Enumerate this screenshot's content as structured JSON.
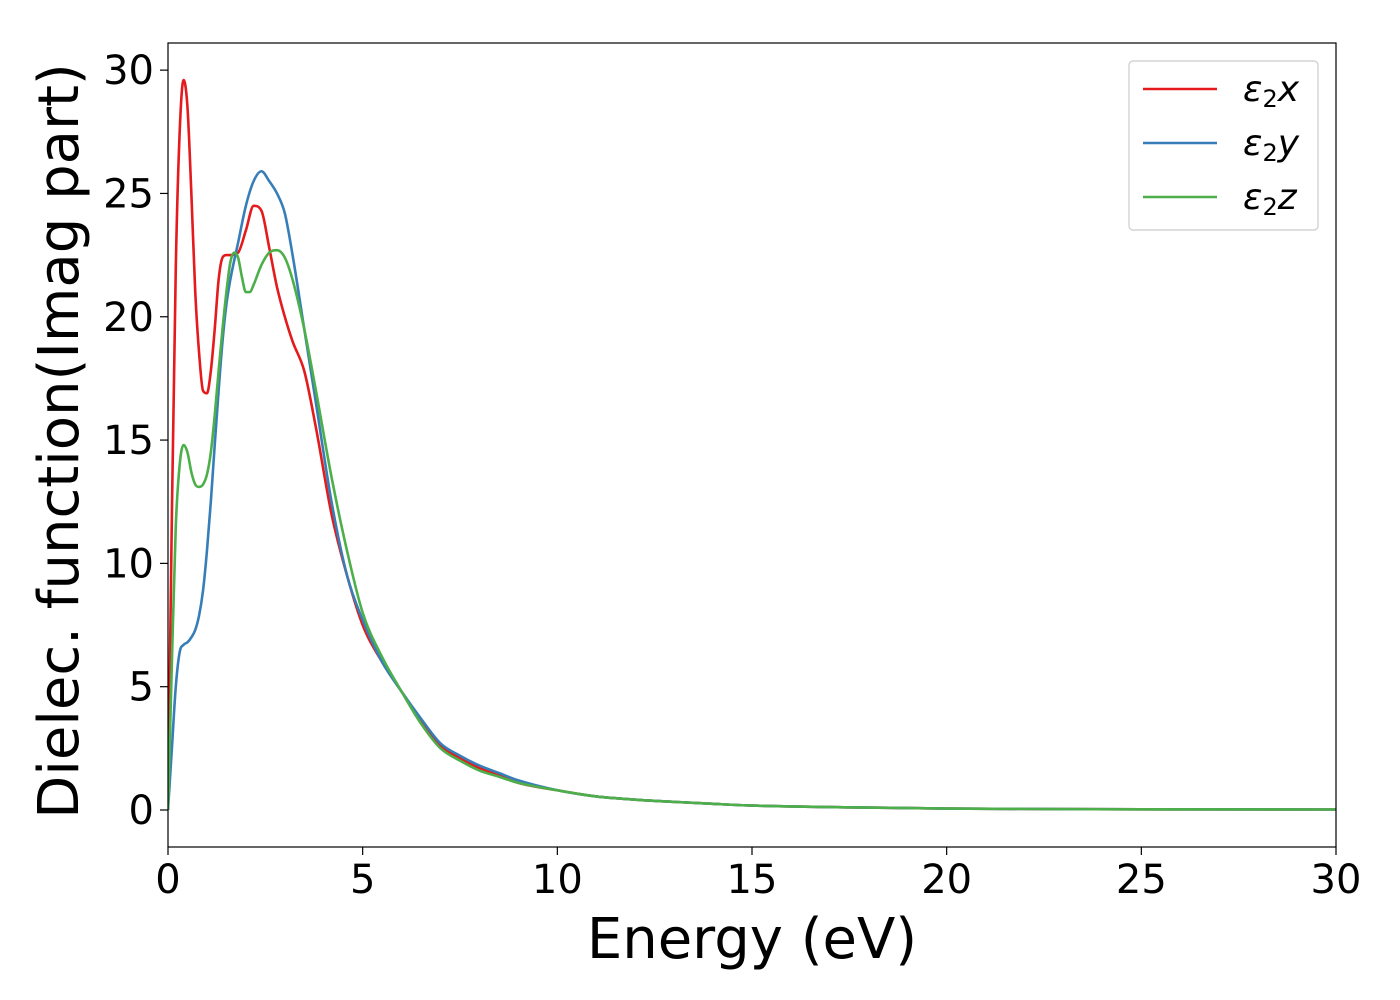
{
  "chart_data": {
    "type": "line",
    "xlabel": "Energy (eV)",
    "ylabel": "Dielec. function(Imag part)",
    "xlim": [
      0,
      30
    ],
    "ylim": [
      -1.5,
      31.1
    ],
    "xticks": [
      0,
      5,
      10,
      15,
      20,
      25,
      30
    ],
    "yticks": [
      0,
      5,
      10,
      15,
      20,
      25,
      30
    ],
    "grid": false,
    "legend_position": "top-right",
    "series": [
      {
        "name": "ε₂x",
        "legend_base": "ε",
        "legend_sub": "2",
        "legend_suffix": "x",
        "color": "#e41a1c",
        "x": [
          0,
          0.1,
          0.2,
          0.3,
          0.4,
          0.5,
          0.6,
          0.7,
          0.8,
          0.9,
          1.0,
          1.1,
          1.2,
          1.3,
          1.4,
          1.5,
          1.6,
          1.8,
          2.0,
          2.2,
          2.4,
          2.6,
          2.8,
          3.0,
          3.2,
          3.5,
          3.8,
          4.2,
          4.6,
          5.0,
          5.5,
          6.0,
          6.5,
          7.0,
          7.5,
          8.0,
          8.5,
          9.0,
          10,
          11,
          12,
          13,
          14,
          15,
          17,
          20,
          25,
          30
        ],
        "y": [
          0,
          12,
          22,
          27.5,
          29.6,
          28.5,
          25,
          21,
          18.5,
          17,
          16.9,
          17.8,
          19.5,
          21.5,
          22.4,
          22.5,
          22.5,
          22.6,
          23.5,
          24.5,
          24.3,
          22.8,
          21.2,
          20,
          19,
          17.8,
          15.5,
          12,
          9.5,
          7.5,
          6,
          4.8,
          3.6,
          2.6,
          2.1,
          1.7,
          1.4,
          1.1,
          0.8,
          0.55,
          0.42,
          0.33,
          0.25,
          0.18,
          0.12,
          0.06,
          0.03,
          0.02
        ]
      },
      {
        "name": "ε₂y",
        "legend_base": "ε",
        "legend_sub": "2",
        "legend_suffix": "y",
        "color": "#377eb8",
        "x": [
          0,
          0.1,
          0.2,
          0.3,
          0.4,
          0.5,
          0.6,
          0.7,
          0.8,
          0.9,
          1.0,
          1.1,
          1.2,
          1.3,
          1.4,
          1.5,
          1.6,
          1.8,
          2.0,
          2.2,
          2.4,
          2.6,
          2.8,
          3.0,
          3.2,
          3.5,
          3.8,
          4.2,
          4.6,
          5.0,
          5.5,
          6.0,
          6.5,
          7.0,
          7.5,
          8.0,
          8.5,
          9.0,
          10,
          11,
          12,
          13,
          14,
          15,
          17,
          20,
          25,
          30
        ],
        "y": [
          0,
          2.5,
          5,
          6.4,
          6.7,
          6.8,
          7,
          7.3,
          7.9,
          8.9,
          10.5,
          12.5,
          14.8,
          17,
          19,
          20.5,
          21.5,
          23,
          24.5,
          25.5,
          25.9,
          25.5,
          25,
          24.2,
          22.5,
          19.5,
          16.5,
          12.5,
          9.5,
          7.7,
          6,
          4.8,
          3.7,
          2.7,
          2.2,
          1.8,
          1.5,
          1.2,
          0.8,
          0.55,
          0.42,
          0.33,
          0.25,
          0.18,
          0.12,
          0.06,
          0.03,
          0.02
        ]
      },
      {
        "name": "ε₂z",
        "legend_base": "ε",
        "legend_sub": "2",
        "legend_suffix": "z",
        "color": "#4daf4a",
        "x": [
          0,
          0.1,
          0.2,
          0.3,
          0.4,
          0.5,
          0.6,
          0.7,
          0.8,
          0.9,
          1.0,
          1.1,
          1.2,
          1.3,
          1.4,
          1.5,
          1.6,
          1.7,
          1.8,
          1.9,
          2.0,
          2.1,
          2.2,
          2.4,
          2.6,
          2.8,
          3.0,
          3.2,
          3.5,
          3.8,
          4.2,
          4.6,
          5.0,
          5.5,
          6.0,
          6.5,
          7.0,
          7.5,
          8.0,
          8.5,
          9.0,
          10,
          11,
          12,
          13,
          14,
          15,
          17,
          20,
          25,
          30
        ],
        "y": [
          0,
          6,
          11.5,
          14,
          14.8,
          14.5,
          13.7,
          13.2,
          13.1,
          13.2,
          13.6,
          14.5,
          16,
          17.8,
          19.5,
          21,
          22.2,
          22.6,
          22.4,
          21.6,
          21.0,
          21.0,
          21.3,
          22.1,
          22.6,
          22.7,
          22.4,
          21.5,
          19.5,
          17,
          13.5,
          10.5,
          8,
          6.2,
          4.8,
          3.5,
          2.5,
          2.0,
          1.6,
          1.35,
          1.1,
          0.8,
          0.55,
          0.42,
          0.33,
          0.25,
          0.18,
          0.12,
          0.06,
          0.03,
          0.02
        ]
      }
    ]
  }
}
